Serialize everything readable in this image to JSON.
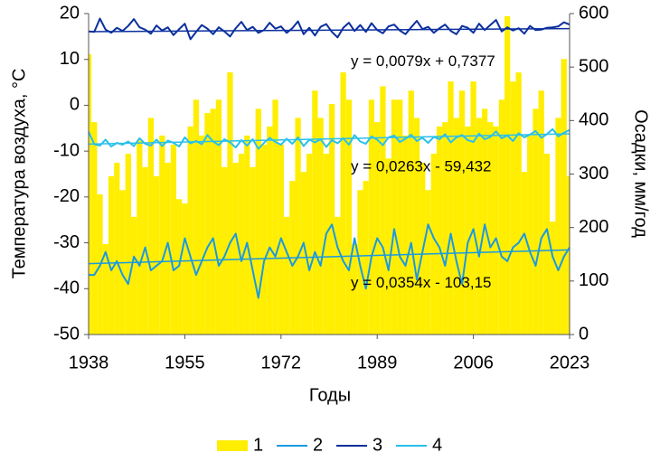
{
  "chart_data": {
    "type": "combo",
    "x_label": "Годы",
    "y_label": "Температура воздуха, °C",
    "y2_label": "Осадки, мм/год",
    "x": [
      1938,
      1939,
      1940,
      1941,
      1942,
      1943,
      1944,
      1945,
      1946,
      1947,
      1948,
      1949,
      1950,
      1951,
      1952,
      1953,
      1954,
      1955,
      1956,
      1957,
      1958,
      1959,
      1960,
      1961,
      1962,
      1963,
      1964,
      1965,
      1966,
      1967,
      1968,
      1969,
      1970,
      1971,
      1972,
      1973,
      1974,
      1975,
      1976,
      1977,
      1978,
      1979,
      1980,
      1981,
      1982,
      1983,
      1984,
      1985,
      1986,
      1987,
      1988,
      1989,
      1990,
      1991,
      1992,
      1993,
      1994,
      1995,
      1996,
      1997,
      1998,
      1999,
      2000,
      2001,
      2002,
      2003,
      2004,
      2005,
      2006,
      2007,
      2008,
      2009,
      2010,
      2011,
      2012,
      2013,
      2014,
      2015,
      2016,
      2017,
      2018,
      2019,
      2020,
      2021,
      2022,
      2023
    ],
    "xlim": [
      1938,
      2023
    ],
    "xticks": [
      1938,
      1955,
      1972,
      1989,
      2006,
      2023
    ],
    "ylim": [
      -50,
      20
    ],
    "yticks": [
      -50,
      -40,
      -30,
      -20,
      -10,
      0,
      10,
      20
    ],
    "y2lim": [
      0,
      600
    ],
    "y2ticks": [
      0,
      100,
      200,
      300,
      400,
      500,
      600
    ],
    "legend": "bottom",
    "series": [
      {
        "name": "1",
        "type": "bar",
        "axis": "y2",
        "color": "#ffee00",
        "values": [
          524,
          397,
          262,
          169,
          296,
          321,
          270,
          338,
          220,
          363,
          313,
          405,
          296,
          372,
          321,
          355,
          253,
          245,
          389,
          439,
          372,
          414,
          422,
          439,
          313,
          490,
          321,
          338,
          372,
          313,
          422,
          355,
          389,
          439,
          355,
          220,
          287,
          405,
          304,
          338,
          456,
          405,
          338,
          431,
          220,
          490,
          439,
          169,
          270,
          287,
          439,
          397,
          464,
          329,
          439,
          439,
          372,
          456,
          405,
          321,
          270,
          338,
          389,
          397,
          473,
          405,
          456,
          389,
          473,
          405,
          422,
          397,
          389,
          439,
          595,
          473,
          490,
          304,
          372,
          422,
          456,
          338,
          211,
          405,
          515,
          296
        ]
      },
      {
        "name": "2",
        "type": "line",
        "axis": "y",
        "color": "#1a9ae0",
        "label_color": "#1a8ad8",
        "trend": [
          -34.55,
          -31.54
        ],
        "trend_label": "y = 0,0354x - 103,15",
        "values": [
          -37,
          -37,
          -35,
          -32,
          -36,
          -34,
          -37,
          -39,
          -33,
          -35,
          -31,
          -36,
          -35,
          -34,
          -30,
          -36,
          -35,
          -29,
          -33,
          -37,
          -34,
          -31,
          -29,
          -35,
          -33,
          -30,
          -28,
          -34,
          -30,
          -36,
          -42,
          -34,
          -31,
          -33,
          -29,
          -32,
          -35,
          -33,
          -30,
          -36,
          -32,
          -35,
          -28,
          -26,
          -31,
          -34,
          -36,
          -29,
          -35,
          -40,
          -33,
          -29,
          -31,
          -36,
          -27,
          -33,
          -35,
          -30,
          -38,
          -32,
          -26,
          -29,
          -31,
          -35,
          -28,
          -34,
          -39,
          -30,
          -27,
          -33,
          -26,
          -31,
          -29,
          -33,
          -34,
          -31,
          -30,
          -28,
          -32,
          -35,
          -29,
          -27,
          -33,
          -36,
          -33,
          -31
        ]
      },
      {
        "name": "3",
        "type": "line",
        "axis": "y",
        "color": "#0b2f9e",
        "label_color": "#1f4fc0",
        "trend": [
          16.05,
          16.72
        ],
        "trend_label": "y = 0,0079x + 0,7377",
        "values": [
          16.1,
          16.0,
          18.9,
          16.5,
          15.8,
          16.9,
          16.2,
          17.3,
          18.8,
          17.0,
          16.5,
          15.6,
          17.4,
          16.3,
          17.0,
          15.3,
          16.6,
          17.8,
          14.4,
          16.0,
          17.5,
          16.7,
          15.5,
          17.0,
          16.1,
          15.0,
          16.8,
          18.2,
          16.4,
          17.1,
          15.8,
          16.4,
          18.0,
          16.7,
          17.2,
          15.8,
          16.8,
          18.3,
          15.5,
          16.9,
          15.2,
          17.1,
          17.7,
          16.0,
          14.8,
          16.9,
          18.0,
          16.2,
          17.5,
          16.0,
          17.9,
          16.4,
          15.7,
          17.2,
          17.6,
          16.3,
          15.5,
          17.0,
          18.4,
          16.6,
          17.1,
          15.8,
          16.8,
          17.6,
          16.2,
          15.5,
          17.3,
          16.9,
          15.8,
          17.8,
          16.4,
          17.5,
          18.6,
          16.1,
          17.0,
          16.3,
          16.8,
          15.6,
          17.3,
          16.4,
          16.5,
          16.9,
          17.0,
          17.2,
          18.1,
          17.6
        ]
      },
      {
        "name": "4",
        "type": "line",
        "axis": "y",
        "color": "#29c0ec",
        "label_color": "#1aa8e0",
        "trend": [
          -8.46,
          -6.22
        ],
        "trend_label": "y = 0,0263x - 59,432",
        "values": [
          -5.8,
          -8.5,
          -8.8,
          -7.5,
          -9.0,
          -8.2,
          -8.6,
          -7.9,
          -8.9,
          -7.2,
          -8.4,
          -8.8,
          -7.5,
          -8.9,
          -7.7,
          -8.2,
          -9.0,
          -7.0,
          -8.3,
          -7.8,
          -8.5,
          -6.5,
          -7.9,
          -8.7,
          -7.4,
          -8.1,
          -9.2,
          -7.6,
          -8.8,
          -7.4,
          -9.5,
          -8.2,
          -7.1,
          -8.0,
          -8.6,
          -7.3,
          -8.4,
          -7.0,
          -8.9,
          -7.5,
          -8.1,
          -7.4,
          -9.1,
          -7.6,
          -8.3,
          -7.2,
          -8.6,
          -6.5,
          -7.9,
          -8.4,
          -6.8,
          -7.5,
          -8.7,
          -7.0,
          -6.6,
          -8.0,
          -7.3,
          -6.4,
          -7.8,
          -7.1,
          -8.2,
          -6.9,
          -7.4,
          -6.3,
          -8.1,
          -7.0,
          -6.5,
          -7.6,
          -8.0,
          -6.2,
          -7.4,
          -6.9,
          -5.7,
          -7.2,
          -6.6,
          -7.8,
          -6.1,
          -7.0,
          -6.4,
          -5.6,
          -7.1,
          -6.3,
          -5.2,
          -6.8,
          -6.0,
          -5.4
        ]
      }
    ]
  }
}
